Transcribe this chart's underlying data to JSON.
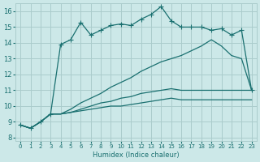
{
  "xlabel": "Humidex (Indice chaleur)",
  "ylabel": "",
  "xlim": [
    -0.5,
    23.5
  ],
  "ylim": [
    7.8,
    16.5
  ],
  "xticks": [
    0,
    1,
    2,
    3,
    4,
    5,
    6,
    7,
    8,
    9,
    10,
    11,
    12,
    13,
    14,
    15,
    16,
    17,
    18,
    19,
    20,
    21,
    22,
    23
  ],
  "yticks": [
    8,
    9,
    10,
    11,
    12,
    13,
    14,
    15,
    16
  ],
  "bg_color": "#cce8e8",
  "grid_color": "#aacccc",
  "line_color": "#1a7070",
  "curves": [
    {
      "x": [
        0,
        1,
        2,
        3,
        4,
        5,
        6,
        7,
        8,
        9,
        10,
        11,
        12,
        13,
        14,
        15,
        16,
        17,
        18,
        19,
        20,
        21,
        22,
        23
      ],
      "y": [
        8.8,
        8.6,
        9.0,
        9.5,
        13.9,
        14.2,
        15.3,
        14.5,
        14.8,
        15.1,
        15.2,
        15.1,
        15.5,
        15.8,
        16.3,
        15.4,
        15.0,
        15.0,
        15.0,
        14.8,
        14.9,
        14.5,
        14.8,
        11.0
      ],
      "marker": "+",
      "ms": 5
    },
    {
      "x": [
        0,
        1,
        2,
        3,
        4,
        5,
        6,
        7,
        8,
        9,
        10,
        11,
        12,
        13,
        14,
        15,
        16,
        17,
        18,
        19,
        20,
        21,
        22,
        23
      ],
      "y": [
        8.8,
        8.6,
        9.0,
        9.5,
        9.5,
        9.8,
        10.2,
        10.5,
        10.8,
        11.2,
        11.5,
        11.8,
        12.2,
        12.5,
        12.8,
        13.0,
        13.2,
        13.5,
        13.8,
        14.2,
        13.8,
        13.2,
        13.0,
        11.0
      ],
      "marker": null,
      "ms": 0
    },
    {
      "x": [
        0,
        1,
        2,
        3,
        4,
        5,
        6,
        7,
        8,
        9,
        10,
        11,
        12,
        13,
        14,
        15,
        16,
        17,
        18,
        19,
        20,
        21,
        22,
        23
      ],
      "y": [
        8.8,
        8.6,
        9.0,
        9.5,
        9.5,
        9.6,
        9.8,
        10.0,
        10.2,
        10.3,
        10.5,
        10.6,
        10.8,
        10.9,
        11.0,
        11.1,
        11.0,
        11.0,
        11.0,
        11.0,
        11.0,
        11.0,
        11.0,
        11.0
      ],
      "marker": null,
      "ms": 0
    },
    {
      "x": [
        0,
        1,
        2,
        3,
        4,
        5,
        6,
        7,
        8,
        9,
        10,
        11,
        12,
        13,
        14,
        15,
        16,
        17,
        18,
        19,
        20,
        21,
        22,
        23
      ],
      "y": [
        8.8,
        8.6,
        9.0,
        9.5,
        9.5,
        9.6,
        9.7,
        9.8,
        9.9,
        10.0,
        10.0,
        10.1,
        10.2,
        10.3,
        10.4,
        10.5,
        10.4,
        10.4,
        10.4,
        10.4,
        10.4,
        10.4,
        10.4,
        10.4
      ],
      "marker": null,
      "ms": 0
    }
  ]
}
